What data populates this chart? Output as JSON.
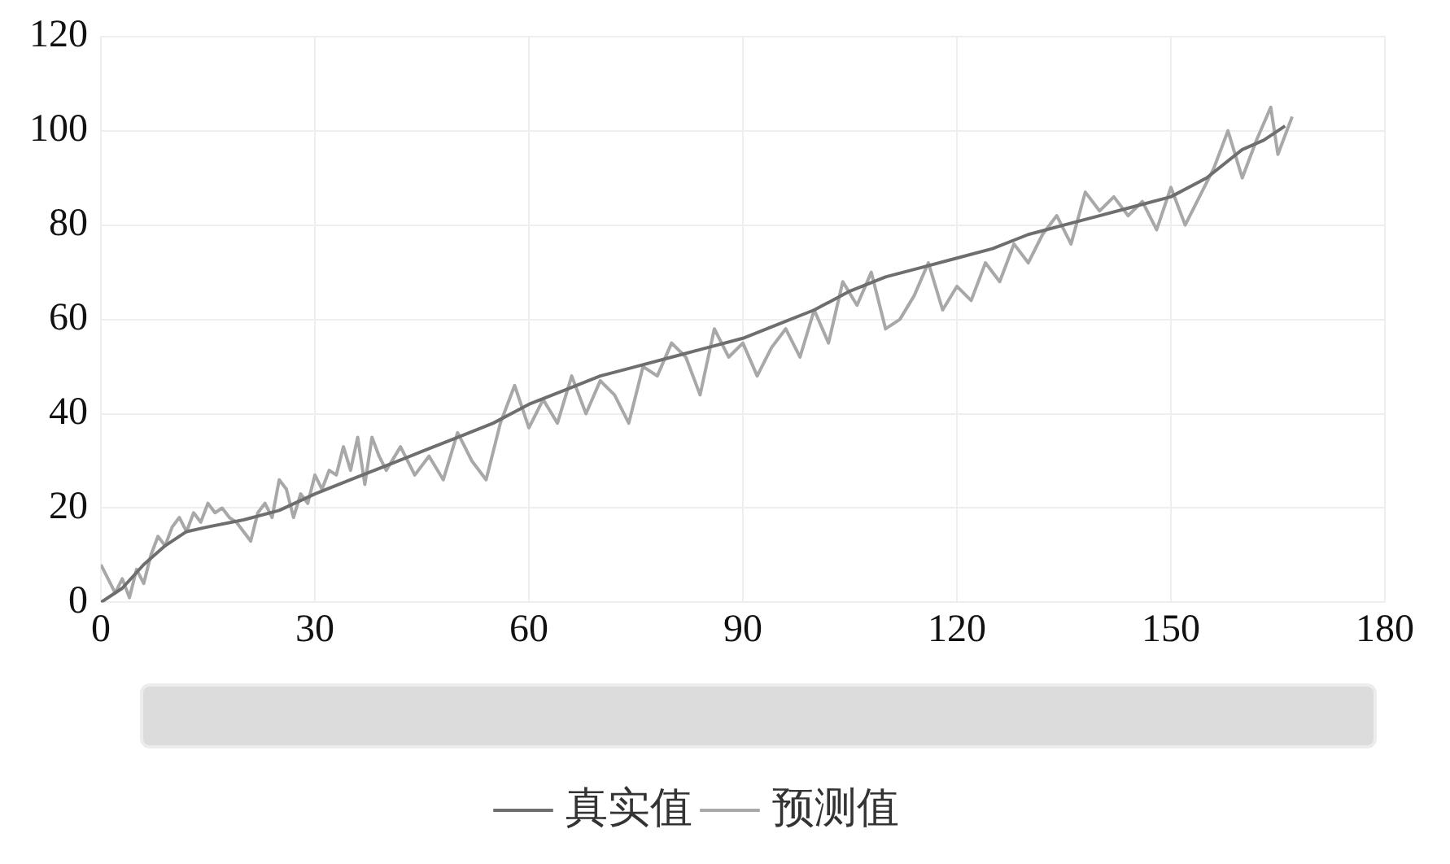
{
  "chart_data": {
    "type": "line",
    "xlim": [
      0,
      180
    ],
    "xticks": [
      0,
      30,
      60,
      90,
      120,
      150,
      180
    ],
    "ylim": [
      0,
      120
    ],
    "yticks": [
      0,
      20,
      40,
      60,
      80,
      100,
      120
    ],
    "grid": true,
    "legend": "bottom",
    "marker": "none",
    "line_style": "solid",
    "series": [
      {
        "name": "真实值",
        "color": "#6e6e6e",
        "x": [
          0,
          3,
          6,
          9,
          12,
          15,
          20,
          25,
          30,
          35,
          40,
          45,
          50,
          55,
          60,
          65,
          70,
          75,
          80,
          85,
          90,
          95,
          100,
          105,
          110,
          115,
          120,
          125,
          130,
          135,
          140,
          145,
          150,
          155,
          160,
          163,
          166
        ],
        "values": [
          0,
          3,
          8,
          12,
          15,
          16,
          17.5,
          19.5,
          23,
          26,
          29,
          32,
          35,
          38,
          42,
          45,
          48,
          50,
          52,
          54,
          56,
          59,
          62,
          66,
          69,
          71,
          73,
          75,
          78,
          80,
          82,
          84,
          86,
          90,
          96,
          98,
          101
        ]
      },
      {
        "name": "预测值",
        "color": "#a8a8a8",
        "x": [
          0,
          1,
          2,
          3,
          4,
          5,
          6,
          7,
          8,
          9,
          10,
          11,
          12,
          13,
          14,
          15,
          16,
          17,
          18,
          19,
          20,
          21,
          22,
          23,
          24,
          25,
          26,
          27,
          28,
          29,
          30,
          31,
          32,
          33,
          34,
          35,
          36,
          37,
          38,
          39,
          40,
          42,
          44,
          46,
          48,
          50,
          52,
          54,
          56,
          58,
          60,
          62,
          64,
          66,
          68,
          70,
          72,
          74,
          76,
          78,
          80,
          82,
          84,
          86,
          88,
          90,
          92,
          94,
          96,
          98,
          100,
          102,
          104,
          106,
          108,
          110,
          112,
          114,
          116,
          118,
          120,
          122,
          124,
          126,
          128,
          130,
          132,
          134,
          136,
          138,
          140,
          142,
          144,
          146,
          148,
          150,
          152,
          154,
          156,
          158,
          160,
          162,
          164,
          165,
          167
        ],
        "values": [
          8,
          5,
          2,
          5,
          1,
          7,
          4,
          10,
          14,
          12,
          16,
          18,
          15,
          19,
          17,
          21,
          19,
          20,
          18,
          17,
          15,
          13,
          19,
          21,
          18,
          26,
          24,
          18,
          23,
          21,
          27,
          24,
          28,
          27,
          33,
          28,
          35,
          25,
          35,
          31,
          28,
          33,
          27,
          31,
          26,
          36,
          30,
          26,
          38,
          46,
          37,
          43,
          38,
          48,
          40,
          47,
          44,
          38,
          50,
          48,
          55,
          52,
          44,
          58,
          52,
          55,
          48,
          54,
          58,
          52,
          62,
          55,
          68,
          63,
          70,
          58,
          60,
          65,
          72,
          62,
          67,
          64,
          72,
          68,
          76,
          72,
          78,
          82,
          76,
          87,
          83,
          86,
          82,
          85,
          79,
          88,
          80,
          86,
          92,
          100,
          90,
          98,
          105,
          95,
          103
        ]
      }
    ]
  }
}
